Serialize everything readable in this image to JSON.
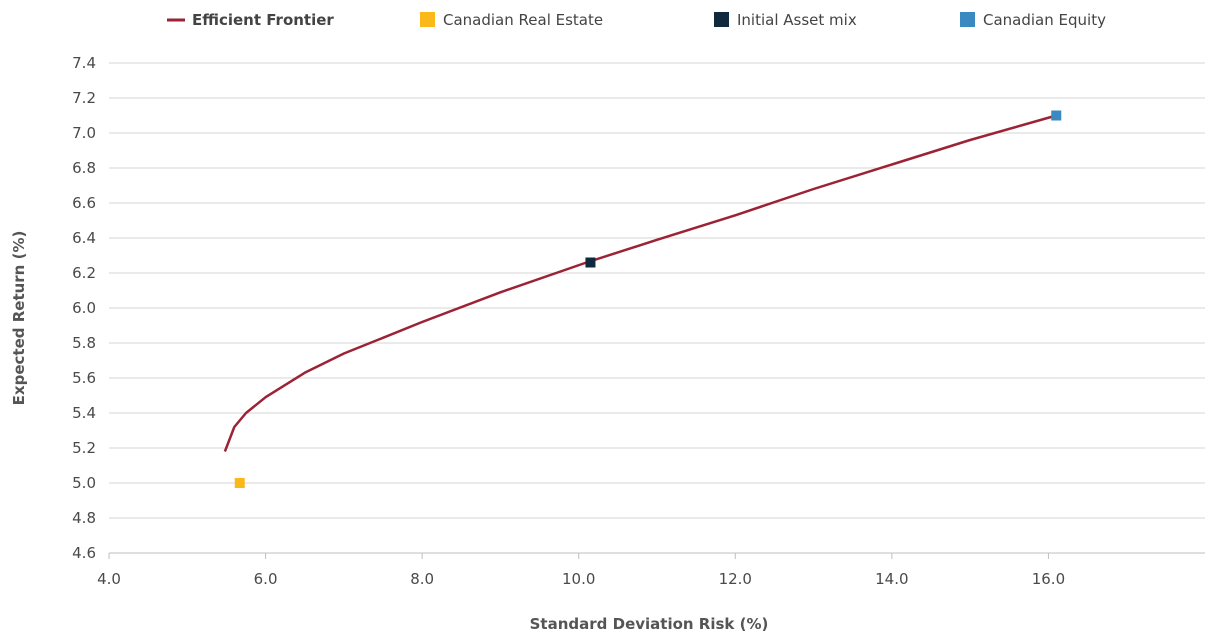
{
  "chart_data": {
    "type": "scatter",
    "xlabel": "Standard Deviation Risk (%)",
    "ylabel": "Expected Return (%)",
    "xlim": [
      4.0,
      18.0
    ],
    "ylim": [
      4.6,
      7.4
    ],
    "x_ticks": [
      "4.0",
      "6.0",
      "8.0",
      "10.0",
      "12.0",
      "14.0",
      "16.0"
    ],
    "y_ticks": [
      "4.6",
      "4.8",
      "5.0",
      "5.2",
      "5.4",
      "5.6",
      "5.8",
      "6.0",
      "6.2",
      "6.4",
      "6.6",
      "6.8",
      "7.0",
      "7.2",
      "7.4"
    ],
    "grid": "horizontal",
    "legend_position": "top",
    "series": [
      {
        "name": "Efficient Frontier",
        "kind": "line",
        "color": "#9b2335",
        "points": [
          [
            5.48,
            5.18
          ],
          [
            5.6,
            5.32
          ],
          [
            5.75,
            5.4
          ],
          [
            6.0,
            5.49
          ],
          [
            6.5,
            5.63
          ],
          [
            7.0,
            5.74
          ],
          [
            7.5,
            5.83
          ],
          [
            8.0,
            5.92
          ],
          [
            9.0,
            6.09
          ],
          [
            10.1,
            6.26
          ],
          [
            11.0,
            6.39
          ],
          [
            12.0,
            6.53
          ],
          [
            13.0,
            6.68
          ],
          [
            14.0,
            6.82
          ],
          [
            15.0,
            6.96
          ],
          [
            16.1,
            7.1
          ]
        ]
      },
      {
        "name": "Canadian Real Estate",
        "kind": "marker",
        "color": "#fbb81a",
        "points": [
          [
            5.67,
            5.0
          ]
        ]
      },
      {
        "name": "Initial Asset mix",
        "kind": "marker",
        "color": "#0f2a3d",
        "points": [
          [
            10.15,
            6.26
          ]
        ]
      },
      {
        "name": "Canadian Equity",
        "kind": "marker",
        "color": "#3a89c0",
        "points": [
          [
            16.1,
            7.1
          ]
        ]
      }
    ]
  }
}
